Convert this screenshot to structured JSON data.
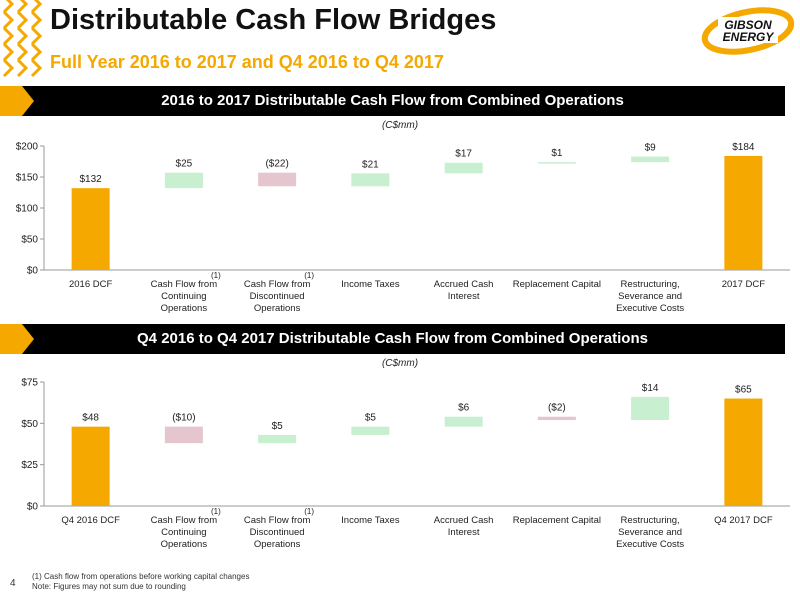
{
  "header": {
    "title": "Distributable Cash Flow Bridges",
    "subtitle": "Full Year 2016 to 2017 and Q4 2016 to Q4 2017",
    "logo_text": [
      "GIBSON",
      "ENERGY"
    ]
  },
  "colors": {
    "accent": "#F5A800",
    "positive": "#C8EFCF",
    "negative": "#E5C6CE",
    "header_bar": "#000000"
  },
  "sections": [
    {
      "banner": "2016 to 2017 Distributable Cash Flow from Combined Operations",
      "unit": "(C$mm)"
    },
    {
      "banner": "Q4 2016 to Q4 2017 Distributable Cash Flow from Combined Operations",
      "unit": "(C$mm)"
    }
  ],
  "chart_data": [
    {
      "type": "bar",
      "subtype": "waterfall",
      "categories": [
        [
          "2016 DCF"
        ],
        [
          "Cash Flow from",
          "Continuing",
          "Operations"
        ],
        [
          "Cash Flow from",
          "Discontinued",
          "Operations"
        ],
        [
          "Income Taxes"
        ],
        [
          "Accrued Cash",
          "Interest"
        ],
        [
          "Replacement Capital"
        ],
        [
          "Restructuring,",
          "Severance and",
          "Executive Costs"
        ],
        [
          "2017 DCF"
        ]
      ],
      "footnote_marks": [
        "",
        "(1)",
        "(1)",
        "",
        "",
        "",
        "",
        ""
      ],
      "values": [
        132,
        25,
        -22,
        21,
        17,
        1,
        9,
        184
      ],
      "bar_kind": [
        "total",
        "delta",
        "delta",
        "delta",
        "delta",
        "delta",
        "delta",
        "total"
      ],
      "data_labels": [
        "$132",
        "$25",
        "($22)",
        "$21",
        "$17",
        "$1",
        "$9",
        "$184"
      ],
      "yticks": [
        "$0",
        "$50",
        "$100",
        "$150",
        "$200"
      ],
      "ylim": [
        0,
        200
      ],
      "ystep": 50
    },
    {
      "type": "bar",
      "subtype": "waterfall",
      "categories": [
        [
          "Q4 2016 DCF"
        ],
        [
          "Cash Flow from",
          "Continuing",
          "Operations"
        ],
        [
          "Cash Flow from",
          "Discontinued",
          "Operations"
        ],
        [
          "Income Taxes"
        ],
        [
          "Accrued Cash",
          "Interest"
        ],
        [
          "Replacement Capital"
        ],
        [
          "Restructuring,",
          "Severance and",
          "Executive Costs"
        ],
        [
          "Q4 2017 DCF"
        ]
      ],
      "footnote_marks": [
        "",
        "(1)",
        "(1)",
        "",
        "",
        "",
        "",
        ""
      ],
      "values": [
        48,
        -10,
        5,
        5,
        6,
        -2,
        14,
        65
      ],
      "bar_kind": [
        "total",
        "delta",
        "delta",
        "delta",
        "delta",
        "delta",
        "delta",
        "total"
      ],
      "data_labels": [
        "$48",
        "($10)",
        "$5",
        "$5",
        "$6",
        "($2)",
        "$14",
        "$65"
      ],
      "yticks": [
        "$0",
        "$25",
        "$50",
        "$75"
      ],
      "ylim": [
        0,
        75
      ],
      "ystep": 25
    }
  ],
  "footnotes": {
    "note1": "(1)    Cash flow from operations before working capital changes",
    "note2": "Note: Figures may not sum due to rounding"
  },
  "page_number": "4"
}
